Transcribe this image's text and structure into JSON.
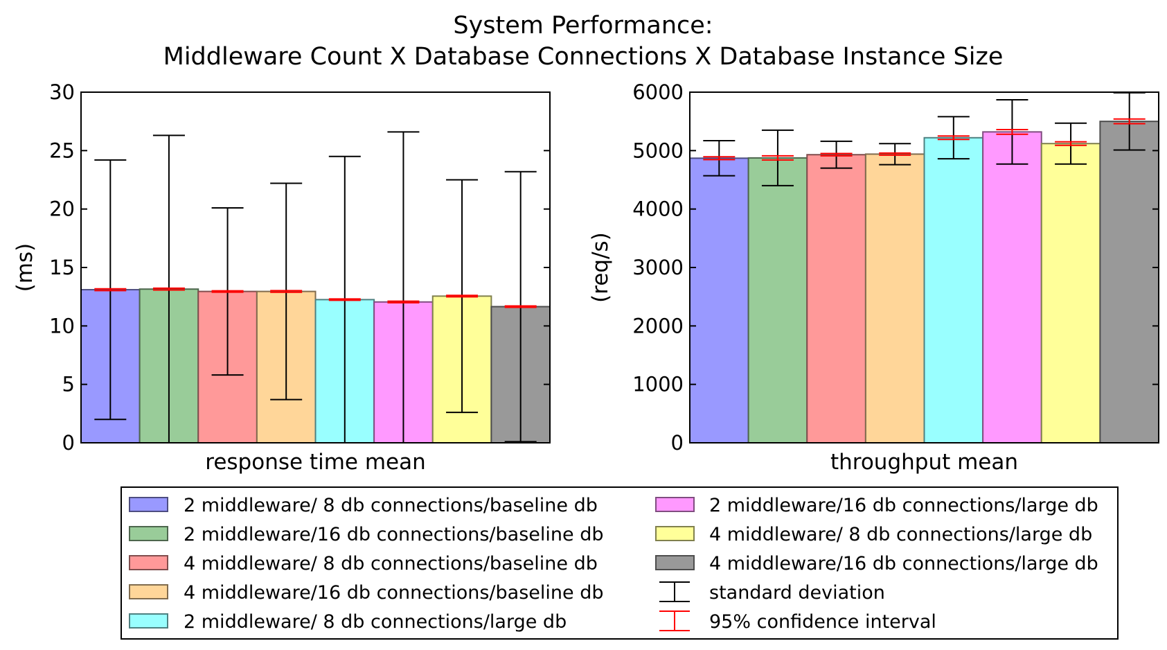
{
  "title_line1": "System Performance:",
  "title_line2": "Middleware Count X Database Connections X Database Instance Size",
  "series": [
    {
      "name": "2 middleware/ 8 db connections/baseline db",
      "color": "#9999ff",
      "edge": "#4d4d80"
    },
    {
      "name": "2 middleware/16 db connections/baseline db",
      "color": "#99cc99",
      "edge": "#4d664d"
    },
    {
      "name": "4 middleware/ 8 db connections/baseline db",
      "color": "#ff9999",
      "edge": "#804d4d"
    },
    {
      "name": "4 middleware/16 db connections/baseline db",
      "color": "#ffd699",
      "edge": "#806b4d"
    },
    {
      "name": "2 middleware/ 8 db connections/large db",
      "color": "#99ffff",
      "edge": "#4d8080"
    },
    {
      "name": "2 middleware/16 db connections/large db",
      "color": "#ff99ff",
      "edge": "#804d80"
    },
    {
      "name": "4 middleware/ 8 db connections/large db",
      "color": "#ffff99",
      "edge": "#80804d"
    },
    {
      "name": "4 middleware/16 db connections/large db",
      "color": "#999999",
      "edge": "#4d4d4d"
    }
  ],
  "legend_extra": [
    {
      "name": "standard deviation",
      "color": "#000000"
    },
    {
      "name": "95% confidence interval",
      "color": "#ff0000"
    }
  ],
  "chart_data": [
    {
      "type": "bar",
      "xlabel": "response time mean",
      "ylabel": "(ms)",
      "ylim": [
        0,
        30
      ],
      "yticks": [
        0,
        5,
        10,
        15,
        20,
        25,
        30
      ],
      "values": [
        13.1,
        13.15,
        12.95,
        12.95,
        12.25,
        12.05,
        12.55,
        11.65
      ],
      "std": [
        11.1,
        13.15,
        7.15,
        9.25,
        12.25,
        14.55,
        9.95,
        11.55
      ],
      "ci95": [
        0.08,
        0.08,
        0.06,
        0.07,
        0.06,
        0.07,
        0.06,
        0.06
      ]
    },
    {
      "type": "bar",
      "xlabel": "throughput mean",
      "ylabel": "(req/s)",
      "ylim": [
        0,
        6000
      ],
      "yticks": [
        0,
        1000,
        2000,
        3000,
        4000,
        5000,
        6000
      ],
      "values": [
        4870,
        4875,
        4930,
        4940,
        5220,
        5320,
        5120,
        5500
      ],
      "std": [
        300,
        475,
        230,
        180,
        360,
        550,
        350,
        490
      ],
      "ci95": [
        25,
        35,
        20,
        18,
        30,
        40,
        30,
        40
      ]
    }
  ],
  "colors": {
    "std_bar": "#000000",
    "ci_bar": "#ff0000"
  }
}
